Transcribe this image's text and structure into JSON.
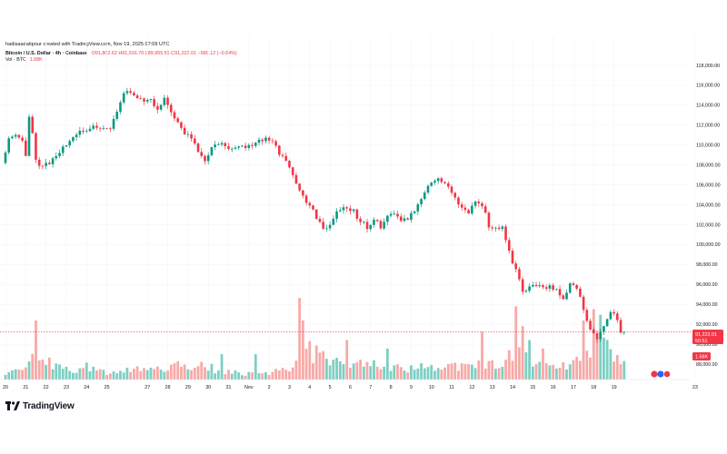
{
  "header": {
    "created_line": "hadisaadatipour created with TradingView.com, Nov 19, 2025 07:09 UTC",
    "symbol_line": "Bitcoin / U.S. Dollar · 4h · Coinbase",
    "ohlc_line": "O91,802.62 H91,916.70 L89,955.55 C91,222.01 −580.12 (−0.64%)",
    "volume_label": "Vol · BTC",
    "volume_value": "1.68K",
    "brand": "TradingView"
  },
  "chart_data": {
    "type": "candlestick",
    "title": "Bitcoin / U.S. Dollar · 4h · Coinbase",
    "y_axis": {
      "min": 88000,
      "max": 118000,
      "step": 2000,
      "labels": [
        "118,000.00",
        "116,000.00",
        "114,000.00",
        "112,000.00",
        "110,000.00",
        "108,000.00",
        "106,000.00",
        "104,000.00",
        "102,000.00",
        "100,000.00",
        "98,000.00",
        "96,000.00",
        "94,000.00",
        "92,000.00",
        "90,000.00",
        "88,000.00"
      ]
    },
    "x_axis": {
      "ticks": [
        "20",
        "21",
        "22",
        "23",
        "24",
        "25",
        "27",
        "28",
        "29",
        "30",
        "31",
        "Nov",
        "2",
        "3",
        "4",
        "5",
        "6",
        "7",
        "8",
        "9",
        "10",
        "11",
        "12",
        "13",
        "14",
        "15",
        "16",
        "17",
        "18",
        "19",
        "23"
      ],
      "tick_times": [
        0,
        6,
        12,
        18,
        24,
        30,
        42,
        48,
        54,
        60,
        66,
        72,
        78,
        84,
        90,
        96,
        102,
        108,
        114,
        120,
        126,
        132,
        138,
        144,
        150,
        156,
        162,
        168,
        174,
        180,
        204
      ]
    },
    "current_price": {
      "value": 91222.01,
      "label": "91,222.01",
      "countdown": "50:51"
    },
    "volume_marker": {
      "label": "1.68K",
      "value": 1.68
    },
    "colors": {
      "up": "#089981",
      "down": "#f23645",
      "up_volume": "#7dcfc2",
      "down_volume": "#f7a9a7"
    },
    "keyframes": [
      [
        0,
        108500
      ],
      [
        2,
        110500
      ],
      [
        4,
        111200
      ],
      [
        6,
        110400
      ],
      [
        7,
        109000
      ],
      [
        8,
        112800
      ],
      [
        9,
        111000
      ],
      [
        10,
        108300
      ],
      [
        12,
        108000
      ],
      [
        14,
        108200
      ],
      [
        16,
        108800
      ],
      [
        18,
        109600
      ],
      [
        20,
        110600
      ],
      [
        24,
        111400
      ],
      [
        28,
        111800
      ],
      [
        30,
        111800
      ],
      [
        32,
        111600
      ],
      [
        34,
        113500
      ],
      [
        36,
        115300
      ],
      [
        38,
        115400
      ],
      [
        40,
        114500
      ],
      [
        44,
        114500
      ],
      [
        46,
        113800
      ],
      [
        48,
        114500
      ],
      [
        50,
        113500
      ],
      [
        52,
        112300
      ],
      [
        54,
        111000
      ],
      [
        56,
        110800
      ],
      [
        58,
        109300
      ],
      [
        60,
        108200
      ],
      [
        62,
        109600
      ],
      [
        64,
        110300
      ],
      [
        68,
        109700
      ],
      [
        72,
        109900
      ],
      [
        76,
        110300
      ],
      [
        78,
        110700
      ],
      [
        80,
        110400
      ],
      [
        82,
        109200
      ],
      [
        84,
        108300
      ],
      [
        86,
        106800
      ],
      [
        88,
        105500
      ],
      [
        90,
        104300
      ],
      [
        92,
        103400
      ],
      [
        94,
        102200
      ],
      [
        96,
        101500
      ],
      [
        98,
        102700
      ],
      [
        100,
        103600
      ],
      [
        102,
        103700
      ],
      [
        104,
        103300
      ],
      [
        106,
        102300
      ],
      [
        108,
        101800
      ],
      [
        110,
        102500
      ],
      [
        112,
        101800
      ],
      [
        114,
        102800
      ],
      [
        116,
        103100
      ],
      [
        118,
        102200
      ],
      [
        120,
        102600
      ],
      [
        122,
        103300
      ],
      [
        124,
        104600
      ],
      [
        126,
        105900
      ],
      [
        128,
        106600
      ],
      [
        130,
        106400
      ],
      [
        132,
        105600
      ],
      [
        134,
        104600
      ],
      [
        136,
        103800
      ],
      [
        138,
        103300
      ],
      [
        140,
        104400
      ],
      [
        142,
        104100
      ],
      [
        144,
        101900
      ],
      [
        146,
        101500
      ],
      [
        148,
        101600
      ],
      [
        150,
        99200
      ],
      [
        152,
        97300
      ],
      [
        154,
        95300
      ],
      [
        156,
        95700
      ],
      [
        158,
        95800
      ],
      [
        162,
        95800
      ],
      [
        164,
        95300
      ],
      [
        166,
        94400
      ],
      [
        168,
        96000
      ],
      [
        170,
        95700
      ],
      [
        172,
        93600
      ],
      [
        174,
        91300
      ],
      [
        176,
        90700
      ],
      [
        178,
        91900
      ],
      [
        180,
        93300
      ],
      [
        182,
        92500
      ],
      [
        183,
        91222.01
      ]
    ],
    "volume_keyframes": [
      [
        0,
        0.13
      ],
      [
        4,
        0.15
      ],
      [
        8,
        0.42
      ],
      [
        10,
        0.25
      ],
      [
        14,
        0.3
      ],
      [
        16,
        0.2
      ],
      [
        20,
        0.16
      ],
      [
        24,
        0.22
      ],
      [
        28,
        0.14
      ],
      [
        32,
        0.12
      ],
      [
        36,
        0.2
      ],
      [
        40,
        0.18
      ],
      [
        44,
        0.17
      ],
      [
        48,
        0.19
      ],
      [
        52,
        0.26
      ],
      [
        56,
        0.24
      ],
      [
        60,
        0.22
      ],
      [
        64,
        0.14
      ],
      [
        68,
        0.12
      ],
      [
        72,
        0.1
      ],
      [
        76,
        0.1
      ],
      [
        80,
        0.14
      ],
      [
        84,
        0.22
      ],
      [
        86,
        0.25
      ],
      [
        88,
        0.35
      ],
      [
        90,
        0.5
      ],
      [
        92,
        0.45
      ],
      [
        96,
        0.38
      ],
      [
        100,
        0.33
      ],
      [
        104,
        0.3
      ],
      [
        108,
        0.27
      ],
      [
        112,
        0.26
      ],
      [
        116,
        0.2
      ],
      [
        120,
        0.19
      ],
      [
        124,
        0.22
      ],
      [
        128,
        0.2
      ],
      [
        132,
        0.22
      ],
      [
        136,
        0.24
      ],
      [
        140,
        0.25
      ],
      [
        144,
        0.27
      ],
      [
        148,
        0.38
      ],
      [
        150,
        0.45
      ],
      [
        152,
        0.5
      ],
      [
        154,
        0.35
      ],
      [
        156,
        0.3
      ],
      [
        160,
        0.22
      ],
      [
        164,
        0.25
      ],
      [
        168,
        0.3
      ],
      [
        172,
        0.4
      ],
      [
        174,
        0.6
      ],
      [
        176,
        0.7
      ],
      [
        178,
        0.6
      ],
      [
        180,
        0.5
      ],
      [
        183,
        0.28
      ]
    ],
    "volume_spikes": [
      [
        9,
        1.05
      ],
      [
        64,
        0.45
      ],
      [
        74,
        0.45
      ],
      [
        87,
        1.45
      ],
      [
        88,
        1.05
      ],
      [
        101,
        0.7
      ],
      [
        113,
        0.55
      ],
      [
        141,
        0.85
      ],
      [
        151,
        1.3
      ],
      [
        153,
        0.95
      ],
      [
        155,
        0.7
      ],
      [
        159,
        0.55
      ],
      [
        171,
        1.05
      ],
      [
        174,
        1.25
      ],
      [
        176,
        1.15
      ]
    ]
  }
}
